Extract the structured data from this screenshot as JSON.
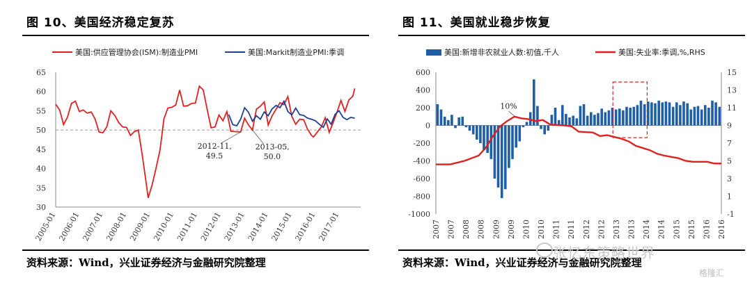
{
  "left": {
    "title": "图 10、美国经济稳定复苏",
    "source": "资料来源：Wind，兴业证券经济与金融研究院整理",
    "annotations": [
      {
        "label_line1": "2012-11,",
        "label_line2": "49.5"
      },
      {
        "label_line1": "2013-05,",
        "label_line2": "50.0"
      }
    ]
  },
  "right": {
    "title": "图 11、美国就业稳步恢复",
    "source": "资料来源：Wind，兴业证券经济与金融研究院整理",
    "annotation": "10%"
  },
  "watermark": "张忆东策略世界",
  "logo_text": "格隆汇",
  "chart_data": [
    {
      "type": "line",
      "title": "图 10、美国经济稳定复苏",
      "xlabel": "",
      "ylabel": "",
      "x_ticks": [
        "2005-01",
        "2006-01",
        "2007-01",
        "2008-01",
        "2009-01",
        "2010-01",
        "2011-01",
        "2012-01",
        "2013-01",
        "2014-01",
        "2015-01",
        "2016-01",
        "2017-01"
      ],
      "x_range": [
        "2005-01",
        "2017-12"
      ],
      "ylim": [
        30,
        65
      ],
      "y_ticks": [
        30,
        35,
        40,
        45,
        50,
        55,
        60,
        65
      ],
      "reference_line": 50,
      "legend_position": "top",
      "series": [
        {
          "name": "美国:供应管理协会(ISM):制造业PMI",
          "color": "#e02020",
          "points": [
            [
              "2005-01",
              56.7
            ],
            [
              "2005-03",
              55.2
            ],
            [
              "2005-05",
              51.4
            ],
            [
              "2005-07",
              53.4
            ],
            [
              "2005-09",
              56.9
            ],
            [
              "2005-11",
              57.5
            ],
            [
              "2006-01",
              54.8
            ],
            [
              "2006-03",
              55.2
            ],
            [
              "2006-05",
              54.4
            ],
            [
              "2006-07",
              54.7
            ],
            [
              "2006-09",
              52.9
            ],
            [
              "2006-11",
              49.5
            ],
            [
              "2007-01",
              49.3
            ],
            [
              "2007-03",
              50.9
            ],
            [
              "2007-05",
              55.0
            ],
            [
              "2007-07",
              53.8
            ],
            [
              "2007-09",
              52.0
            ],
            [
              "2007-11",
              50.8
            ],
            [
              "2008-01",
              50.7
            ],
            [
              "2008-03",
              48.6
            ],
            [
              "2008-05",
              49.6
            ],
            [
              "2008-07",
              50.0
            ],
            [
              "2008-09",
              43.5
            ],
            [
              "2008-11",
              36.2
            ],
            [
              "2008-12",
              32.4
            ],
            [
              "2009-02",
              35.8
            ],
            [
              "2009-04",
              40.1
            ],
            [
              "2009-06",
              44.8
            ],
            [
              "2009-08",
              52.9
            ],
            [
              "2009-10",
              55.7
            ],
            [
              "2009-12",
              55.9
            ],
            [
              "2010-02",
              56.5
            ],
            [
              "2010-04",
              60.4
            ],
            [
              "2010-06",
              56.2
            ],
            [
              "2010-08",
              56.3
            ],
            [
              "2010-10",
              56.9
            ],
            [
              "2010-12",
              57.0
            ],
            [
              "2011-02",
              61.4
            ],
            [
              "2011-04",
              60.4
            ],
            [
              "2011-06",
              55.3
            ],
            [
              "2011-08",
              50.6
            ],
            [
              "2011-10",
              50.8
            ],
            [
              "2011-12",
              53.9
            ],
            [
              "2012-02",
              52.4
            ],
            [
              "2012-04",
              54.8
            ],
            [
              "2012-06",
              49.7
            ],
            [
              "2012-08",
              49.6
            ],
            [
              "2012-11",
              49.5
            ],
            [
              "2013-01",
              53.1
            ],
            [
              "2013-03",
              51.3
            ],
            [
              "2013-05",
              50.0
            ],
            [
              "2013-07",
              55.4
            ],
            [
              "2013-09",
              56.2
            ],
            [
              "2013-11",
              57.3
            ],
            [
              "2014-01",
              51.3
            ],
            [
              "2014-03",
              53.7
            ],
            [
              "2014-05",
              55.4
            ],
            [
              "2014-07",
              57.1
            ],
            [
              "2014-09",
              56.6
            ],
            [
              "2014-11",
              58.7
            ],
            [
              "2015-01",
              53.5
            ],
            [
              "2015-03",
              51.5
            ],
            [
              "2015-05",
              52.8
            ],
            [
              "2015-07",
              52.7
            ],
            [
              "2015-09",
              50.2
            ],
            [
              "2015-11",
              48.6
            ],
            [
              "2015-12",
              48.2
            ],
            [
              "2016-02",
              49.5
            ],
            [
              "2016-04",
              50.8
            ],
            [
              "2016-06",
              53.2
            ],
            [
              "2016-08",
              49.4
            ],
            [
              "2016-10",
              51.9
            ],
            [
              "2016-12",
              54.7
            ],
            [
              "2017-02",
              57.7
            ],
            [
              "2017-04",
              54.8
            ],
            [
              "2017-06",
              57.8
            ],
            [
              "2017-08",
              58.8
            ],
            [
              "2017-09",
              60.8
            ]
          ]
        },
        {
          "name": "美国:Markit制造业PMI:季调",
          "color": "#1f3f8f",
          "points": [
            [
              "2012-05",
              54.0
            ],
            [
              "2012-07",
              51.4
            ],
            [
              "2012-09",
              51.1
            ],
            [
              "2012-11",
              52.8
            ],
            [
              "2013-01",
              55.8
            ],
            [
              "2013-03",
              54.6
            ],
            [
              "2013-05",
              52.3
            ],
            [
              "2013-07",
              53.7
            ],
            [
              "2013-09",
              52.8
            ],
            [
              "2013-11",
              54.7
            ],
            [
              "2014-01",
              53.7
            ],
            [
              "2014-03",
              55.5
            ],
            [
              "2014-05",
              56.4
            ],
            [
              "2014-07",
              55.8
            ],
            [
              "2014-09",
              57.5
            ],
            [
              "2014-11",
              54.8
            ],
            [
              "2015-01",
              53.9
            ],
            [
              "2015-03",
              55.7
            ],
            [
              "2015-05",
              54.0
            ],
            [
              "2015-07",
              53.8
            ],
            [
              "2015-09",
              53.1
            ],
            [
              "2015-11",
              52.8
            ],
            [
              "2016-01",
              52.4
            ],
            [
              "2016-03",
              51.5
            ],
            [
              "2016-05",
              50.7
            ],
            [
              "2016-07",
              52.9
            ],
            [
              "2016-09",
              51.5
            ],
            [
              "2016-11",
              54.1
            ],
            [
              "2017-01",
              55.0
            ],
            [
              "2017-03",
              53.3
            ],
            [
              "2017-05",
              52.7
            ],
            [
              "2017-07",
              53.3
            ],
            [
              "2017-09",
              53.1
            ]
          ]
        }
      ]
    },
    {
      "type": "bar",
      "title": "图 11、美国就业稳步恢复",
      "xlabel": "",
      "x_ticks": [
        "2007",
        "2007",
        "2008",
        "2008",
        "2009",
        "2009",
        "2010",
        "2010",
        "2011",
        "2011",
        "2012",
        "2012",
        "2013",
        "2013",
        "2014",
        "2014",
        "2015",
        "2015",
        "2016",
        "2016"
      ],
      "x_range": [
        2007.0,
        2017.0
      ],
      "ylim_left": [
        -1000,
        600
      ],
      "y_ticks_left": [
        -1000,
        -800,
        -600,
        -400,
        -200,
        0,
        200,
        400,
        600
      ],
      "ylim_right": [
        -1,
        15
      ],
      "y_ticks_right": [
        -1,
        1,
        3,
        5,
        7,
        9,
        11,
        13,
        15
      ],
      "legend_position": "top",
      "highlight_box": {
        "x_from": 2013.2,
        "x_to": 2014.4
      },
      "series": [
        {
          "name": "美国:新增非农就业人数:初值,千人",
          "type": "bar",
          "axis": "left",
          "color": "#1f5fa8",
          "quarterly_x_start": 2007.0,
          "quarterly_step": 0.125,
          "values": [
            240,
            180,
            100,
            60,
            120,
            -30,
            90,
            100,
            -20,
            -60,
            -100,
            -160,
            -200,
            -280,
            -310,
            -380,
            -600,
            -700,
            -820,
            -720,
            -480,
            -380,
            -250,
            -180,
            -20,
            40,
            150,
            520,
            220,
            -40,
            -100,
            -60,
            120,
            200,
            60,
            230,
            130,
            90,
            110,
            80,
            220,
            240,
            110,
            150,
            120,
            140,
            190,
            150,
            170,
            200,
            180,
            190,
            170,
            210,
            200,
            210,
            230,
            280,
            240,
            270,
            260,
            250,
            280,
            260,
            270,
            260,
            210,
            260,
            230,
            270,
            250,
            180,
            210,
            220,
            180,
            230,
            200,
            280,
            260,
            210
          ]
        },
        {
          "name": "美国:失业率:季调,%,RHS",
          "type": "line",
          "axis": "right",
          "color": "#e02020",
          "points": [
            [
              2007.0,
              4.6
            ],
            [
              2007.5,
              4.6
            ],
            [
              2008.0,
              5.0
            ],
            [
              2008.5,
              5.6
            ],
            [
              2008.75,
              6.5
            ],
            [
              2009.0,
              7.8
            ],
            [
              2009.25,
              8.9
            ],
            [
              2009.5,
              9.5
            ],
            [
              2009.75,
              10.0
            ],
            [
              2010.0,
              9.8
            ],
            [
              2010.25,
              9.7
            ],
            [
              2010.5,
              9.5
            ],
            [
              2010.75,
              9.6
            ],
            [
              2011.0,
              9.1
            ],
            [
              2011.5,
              9.0
            ],
            [
              2011.75,
              8.9
            ],
            [
              2012.0,
              8.3
            ],
            [
              2012.5,
              8.2
            ],
            [
              2012.75,
              7.8
            ],
            [
              2013.0,
              7.9
            ],
            [
              2013.5,
              7.5
            ],
            [
              2013.75,
              7.2
            ],
            [
              2014.0,
              6.7
            ],
            [
              2014.5,
              6.2
            ],
            [
              2014.75,
              5.8
            ],
            [
              2015.0,
              5.6
            ],
            [
              2015.5,
              5.3
            ],
            [
              2015.75,
              5.0
            ],
            [
              2016.0,
              4.9
            ],
            [
              2016.5,
              4.9
            ],
            [
              2016.75,
              4.7
            ],
            [
              2017.0,
              4.7
            ]
          ]
        }
      ]
    }
  ]
}
